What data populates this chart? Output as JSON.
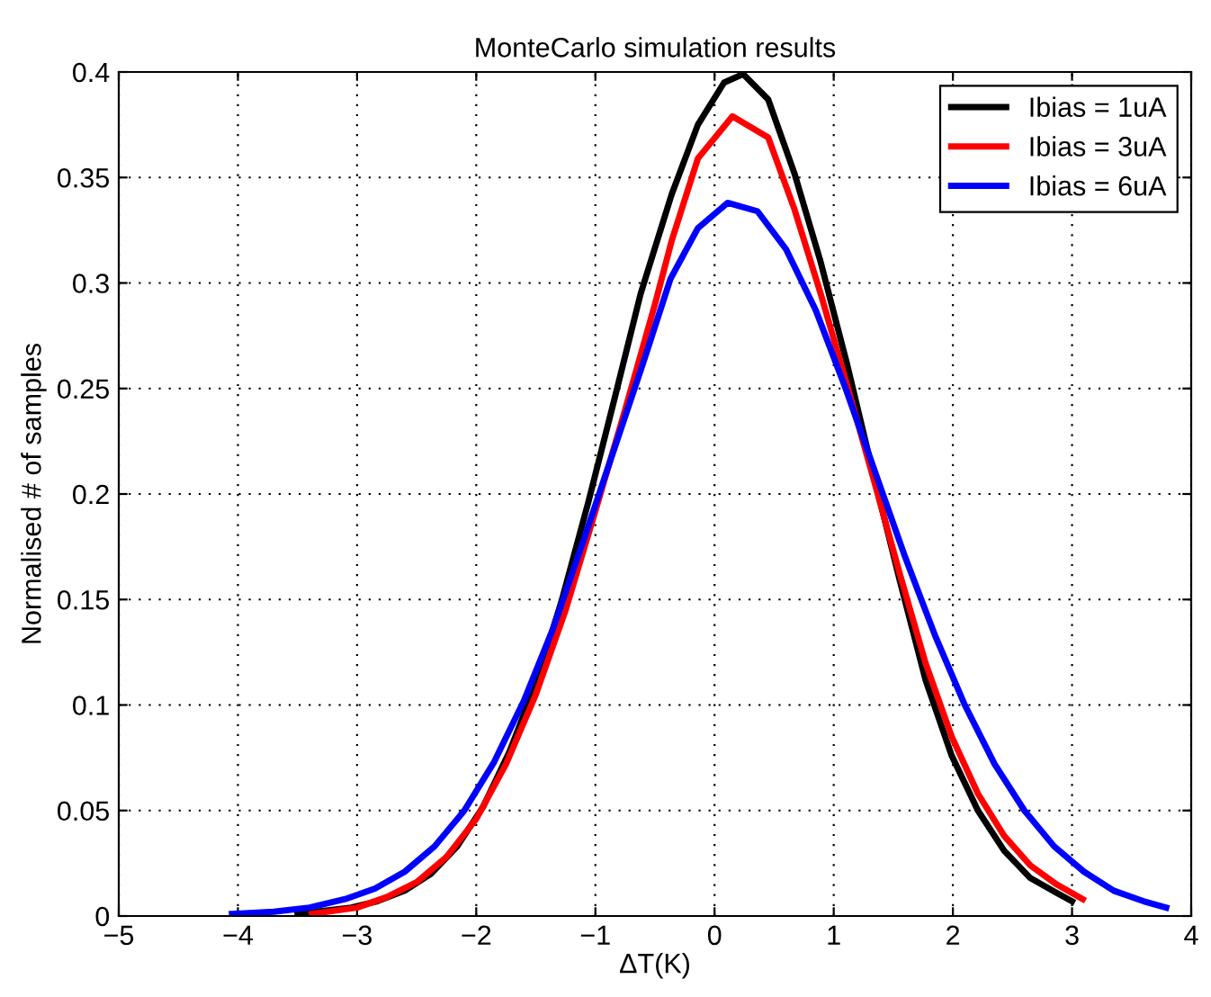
{
  "chart_data": {
    "type": "line",
    "title": "MonteCarlo simulation results",
    "xlabel": "ΔT(K)",
    "ylabel": "Normalised # of samples",
    "xlim": [
      -5,
      4
    ],
    "xticks": [
      {
        "value": -5,
        "label": "−5"
      },
      {
        "value": -4,
        "label": "−4"
      },
      {
        "value": -3,
        "label": "−3"
      },
      {
        "value": -2,
        "label": "−2"
      },
      {
        "value": -1,
        "label": "−1"
      },
      0,
      1,
      2,
      3,
      4
    ],
    "ylim": [
      0,
      0.4
    ],
    "yticks": [
      0,
      0.05,
      0.1,
      0.15,
      0.2,
      0.25,
      0.3,
      0.35,
      0.4
    ],
    "grid": true,
    "legend": "top right",
    "line_style": "solid",
    "series": [
      {
        "name": "Ibias = 1uA",
        "color": "#000000",
        "x": [
          -3.5,
          -3.05,
          -2.83,
          -2.6,
          -2.38,
          -2.16,
          -1.94,
          -1.72,
          -1.5,
          -1.28,
          -1.06,
          -0.84,
          -0.62,
          -0.36,
          -0.14,
          0.08,
          0.24,
          0.45,
          0.67,
          0.89,
          1.11,
          1.33,
          1.55,
          1.77,
          1.99,
          2.21,
          2.43,
          2.65,
          2.87,
          3.0
        ],
        "values": [
          0.001,
          0.004,
          0.007,
          0.012,
          0.02,
          0.033,
          0.052,
          0.078,
          0.11,
          0.15,
          0.196,
          0.245,
          0.295,
          0.342,
          0.375,
          0.395,
          0.399,
          0.387,
          0.352,
          0.31,
          0.262,
          0.21,
          0.16,
          0.112,
          0.076,
          0.05,
          0.031,
          0.018,
          0.011,
          0.007
        ]
      },
      {
        "name": "Ibias = 3uA",
        "color": "#ff0000",
        "x": [
          -3.38,
          -3.0,
          -2.75,
          -2.5,
          -2.25,
          -2.0,
          -1.75,
          -1.5,
          -1.25,
          -1.0,
          -0.75,
          -0.5,
          -0.36,
          -0.14,
          0.15,
          0.45,
          0.67,
          0.89,
          1.11,
          1.33,
          1.55,
          1.77,
          1.99,
          2.21,
          2.43,
          2.65,
          2.87,
          3.09
        ],
        "values": [
          0.001,
          0.004,
          0.009,
          0.016,
          0.028,
          0.046,
          0.072,
          0.105,
          0.145,
          0.192,
          0.24,
          0.29,
          0.32,
          0.359,
          0.379,
          0.369,
          0.335,
          0.295,
          0.252,
          0.208,
          0.163,
          0.12,
          0.085,
          0.058,
          0.038,
          0.024,
          0.015,
          0.008
        ]
      },
      {
        "name": "Ibias = 6uA",
        "color": "#0000ff",
        "x": [
          -4.05,
          -3.7,
          -3.4,
          -3.1,
          -2.85,
          -2.6,
          -2.35,
          -2.1,
          -1.85,
          -1.6,
          -1.35,
          -1.1,
          -0.85,
          -0.6,
          -0.37,
          -0.14,
          0.11,
          0.36,
          0.6,
          0.85,
          1.1,
          1.35,
          1.6,
          1.85,
          2.1,
          2.35,
          2.6,
          2.85,
          3.1,
          3.35,
          3.6,
          3.79
        ],
        "values": [
          0.001,
          0.002,
          0.004,
          0.008,
          0.013,
          0.021,
          0.033,
          0.05,
          0.073,
          0.102,
          0.137,
          0.178,
          0.22,
          0.262,
          0.302,
          0.326,
          0.338,
          0.334,
          0.316,
          0.287,
          0.25,
          0.21,
          0.17,
          0.133,
          0.1,
          0.072,
          0.05,
          0.033,
          0.021,
          0.012,
          0.007,
          0.004
        ]
      }
    ]
  }
}
